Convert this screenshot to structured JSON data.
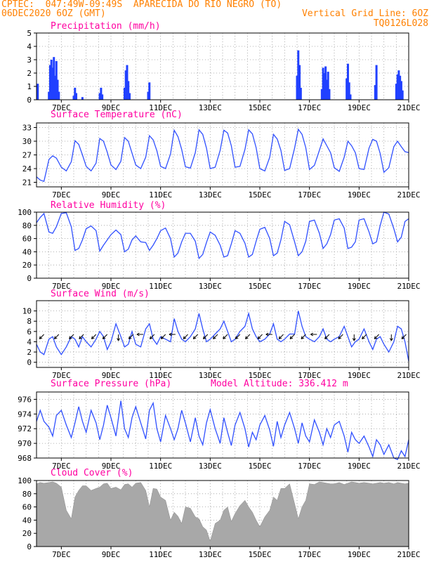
{
  "header": {
    "line1": "CPTEC:  047:49W-09:49S  APARECIDA DO RIO NEGRO (TO)",
    "line2": "06DEC2020 6OZ (GMT)",
    "grid_note": "Vertical Grid Line: 6OZ",
    "code": "TQ0126L028"
  },
  "model_altitude_label": "Model Altitude: 336.412 m",
  "colors": {
    "header": "#ff8000",
    "title": "#ff00a0",
    "line": "#3050ff",
    "bar": "#2040ff",
    "cloud": "#a8a8a8",
    "wind_arrow": "#000000"
  },
  "chart_data": [
    {
      "id": "precip",
      "type": "bar",
      "title": "Precipitation (mm/h)",
      "ylim": [
        0,
        5
      ],
      "yticks": [
        0,
        1,
        2,
        3,
        4,
        5
      ],
      "xlim": [
        6.0,
        21.0
      ],
      "xticks": [
        "7DEC",
        "9DEC",
        "11DEC",
        "13DEC",
        "15DEC",
        "17DEC",
        "19DEC",
        "21DEC"
      ],
      "grid": "dotted",
      "x": [
        6.05,
        6.5,
        6.55,
        6.6,
        6.65,
        6.7,
        6.75,
        6.8,
        6.85,
        6.9,
        7.5,
        7.55,
        7.6,
        7.85,
        8.55,
        8.6,
        8.65,
        9.55,
        9.6,
        9.65,
        9.7,
        9.75,
        10.5,
        10.55,
        16.5,
        16.55,
        16.6,
        16.65,
        17.5,
        17.55,
        17.6,
        17.65,
        17.7,
        17.75,
        17.8,
        18.5,
        18.55,
        18.6,
        18.65,
        19.65,
        19.7,
        20.5,
        20.55,
        20.6,
        20.65,
        20.7,
        20.75
      ],
      "values": [
        1.2,
        0.6,
        2.6,
        3.0,
        2.4,
        3.2,
        1.8,
        2.9,
        1.5,
        0.6,
        0.3,
        0.9,
        0.5,
        0.2,
        0.5,
        0.9,
        0.4,
        0.9,
        2.2,
        2.6,
        1.4,
        0.5,
        0.6,
        1.3,
        1.8,
        3.7,
        2.6,
        0.9,
        0.8,
        2.4,
        2.0,
        2.5,
        1.5,
        2.1,
        0.8,
        1.6,
        2.7,
        1.3,
        0.4,
        1.1,
        2.6,
        1.2,
        1.9,
        2.2,
        1.8,
        1.4,
        0.7
      ]
    },
    {
      "id": "temp",
      "type": "line",
      "title": "Surface Temperature (nC)",
      "ylim": [
        20,
        34
      ],
      "yticks": [
        21,
        24,
        27,
        30,
        33
      ],
      "xlim": [
        6.0,
        21.0
      ],
      "xticks": [
        "7DEC",
        "9DEC",
        "11DEC",
        "13DEC",
        "15DEC",
        "17DEC",
        "19DEC",
        "21DEC"
      ],
      "grid": "dotted",
      "x": [
        6.0,
        6.15,
        6.3,
        6.5,
        6.65,
        6.8,
        7.0,
        7.2,
        7.4,
        7.55,
        7.7,
        7.85,
        8.0,
        8.2,
        8.4,
        8.55,
        8.7,
        8.85,
        9.0,
        9.2,
        9.4,
        9.55,
        9.7,
        9.85,
        10.0,
        10.2,
        10.4,
        10.55,
        10.7,
        10.85,
        11.0,
        11.2,
        11.4,
        11.55,
        11.7,
        11.85,
        12.0,
        12.2,
        12.4,
        12.55,
        12.7,
        12.85,
        13.0,
        13.2,
        13.4,
        13.55,
        13.7,
        13.85,
        14.0,
        14.2,
        14.4,
        14.55,
        14.7,
        14.85,
        15.0,
        15.2,
        15.4,
        15.55,
        15.7,
        15.85,
        16.0,
        16.2,
        16.4,
        16.55,
        16.7,
        16.85,
        17.0,
        17.2,
        17.4,
        17.55,
        17.7,
        17.85,
        18.0,
        18.2,
        18.4,
        18.55,
        18.7,
        18.85,
        19.0,
        19.2,
        19.4,
        19.55,
        19.7,
        19.85,
        20.0,
        20.2,
        20.4,
        20.55,
        20.7,
        20.85,
        21.0
      ],
      "values": [
        22.2,
        21.5,
        21.2,
        26.0,
        26.8,
        26.3,
        24.3,
        23.5,
        25.5,
        30.1,
        29.3,
        27.0,
        24.5,
        23.5,
        25.2,
        30.6,
        30.0,
        27.6,
        24.8,
        23.8,
        25.6,
        30.8,
        30.0,
        27.4,
        24.8,
        24.0,
        26.5,
        31.2,
        30.3,
        27.9,
        24.5,
        24.0,
        27.2,
        32.4,
        31.0,
        28.2,
        24.4,
        24.1,
        27.5,
        32.5,
        31.5,
        28.5,
        24.0,
        24.3,
        28.0,
        32.4,
        31.8,
        29.0,
        24.3,
        24.5,
        28.2,
        32.5,
        31.6,
        28.6,
        24.0,
        23.5,
        26.5,
        31.5,
        30.5,
        28.0,
        23.6,
        24.0,
        28.5,
        32.6,
        31.5,
        28.6,
        23.8,
        24.7,
        28.0,
        30.5,
        29.0,
        27.5,
        24.2,
        23.4,
        26.5,
        30.0,
        29.0,
        27.5,
        24.0,
        23.8,
        28.5,
        30.4,
        30.0,
        27.3,
        23.2,
        24.2,
        28.8,
        30.0,
        28.8,
        27.7,
        27.5
      ]
    },
    {
      "id": "rh",
      "type": "line",
      "title": "Relative Humidity (%)",
      "ylim": [
        0,
        100
      ],
      "yticks": [
        0,
        20,
        40,
        60,
        80,
        100
      ],
      "xlim": [
        6.0,
        21.0
      ],
      "xticks": [
        "7DEC",
        "9DEC",
        "11DEC",
        "13DEC",
        "15DEC",
        "17DEC",
        "19DEC",
        "21DEC"
      ],
      "grid": "dotted",
      "x": [
        6.0,
        6.15,
        6.3,
        6.5,
        6.65,
        6.8,
        7.0,
        7.2,
        7.4,
        7.55,
        7.7,
        7.85,
        8.0,
        8.2,
        8.4,
        8.55,
        8.7,
        8.85,
        9.0,
        9.2,
        9.4,
        9.55,
        9.7,
        9.85,
        10.0,
        10.2,
        10.4,
        10.55,
        10.7,
        10.85,
        11.0,
        11.2,
        11.4,
        11.55,
        11.7,
        11.85,
        12.0,
        12.2,
        12.4,
        12.55,
        12.7,
        12.85,
        13.0,
        13.2,
        13.4,
        13.55,
        13.7,
        13.85,
        14.0,
        14.2,
        14.4,
        14.55,
        14.7,
        14.85,
        15.0,
        15.2,
        15.4,
        15.55,
        15.7,
        15.85,
        16.0,
        16.2,
        16.4,
        16.55,
        16.7,
        16.85,
        17.0,
        17.2,
        17.4,
        17.55,
        17.7,
        17.85,
        18.0,
        18.2,
        18.4,
        18.55,
        18.7,
        18.85,
        19.0,
        19.2,
        19.4,
        19.55,
        19.7,
        19.85,
        20.0,
        20.2,
        20.4,
        20.55,
        20.7,
        20.85,
        21.0
      ],
      "values": [
        84,
        92,
        98,
        70,
        68,
        78,
        98,
        99,
        78,
        42,
        45,
        58,
        75,
        79,
        72,
        41,
        50,
        58,
        66,
        73,
        66,
        40,
        44,
        58,
        64,
        55,
        54,
        42,
        50,
        60,
        72,
        76,
        60,
        32,
        38,
        55,
        68,
        68,
        56,
        30,
        36,
        54,
        70,
        65,
        50,
        32,
        34,
        52,
        72,
        68,
        53,
        32,
        36,
        56,
        74,
        77,
        60,
        34,
        38,
        58,
        86,
        81,
        55,
        34,
        40,
        56,
        86,
        88,
        68,
        45,
        52,
        66,
        88,
        90,
        76,
        45,
        47,
        55,
        88,
        90,
        70,
        52,
        55,
        80,
        100,
        97,
        75,
        55,
        62,
        86,
        90
      ]
    },
    {
      "id": "wind",
      "type": "line",
      "title": "Surface Wind (m/s)",
      "ylim": [
        -1,
        12
      ],
      "yticks": [
        0,
        2,
        4,
        6,
        8,
        10
      ],
      "xlim": [
        6.0,
        21.0
      ],
      "xticks": [
        "7DEC",
        "9DEC",
        "11DEC",
        "13DEC",
        "15DEC",
        "17DEC",
        "19DEC",
        "21DEC"
      ],
      "grid": "dotted",
      "x": [
        6.0,
        6.15,
        6.3,
        6.5,
        6.65,
        6.8,
        7.0,
        7.2,
        7.4,
        7.55,
        7.7,
        7.85,
        8.0,
        8.2,
        8.4,
        8.55,
        8.7,
        8.85,
        9.0,
        9.2,
        9.4,
        9.55,
        9.7,
        9.85,
        10.0,
        10.2,
        10.4,
        10.55,
        10.7,
        10.85,
        11.0,
        11.2,
        11.4,
        11.55,
        11.7,
        11.85,
        12.0,
        12.2,
        12.4,
        12.55,
        12.7,
        12.85,
        13.0,
        13.2,
        13.4,
        13.55,
        13.7,
        13.85,
        14.0,
        14.2,
        14.4,
        14.55,
        14.7,
        14.85,
        15.0,
        15.2,
        15.4,
        15.55,
        15.7,
        15.85,
        16.0,
        16.2,
        16.4,
        16.55,
        16.7,
        16.85,
        17.0,
        17.2,
        17.4,
        17.55,
        17.7,
        17.85,
        18.0,
        18.2,
        18.4,
        18.55,
        18.7,
        18.85,
        19.0,
        19.2,
        19.4,
        19.55,
        19.7,
        19.85,
        20.0,
        20.2,
        20.4,
        20.55,
        20.7,
        20.85,
        21.0
      ],
      "values": [
        3.5,
        2.0,
        1.5,
        4.5,
        5.0,
        3.0,
        1.5,
        3.0,
        5.0,
        4.5,
        3.0,
        5.0,
        4.0,
        3.0,
        4.5,
        6.0,
        5.0,
        2.5,
        4.0,
        7.5,
        5.0,
        3.0,
        3.5,
        6.0,
        3.5,
        3.0,
        6.5,
        7.5,
        4.5,
        3.5,
        5.0,
        4.5,
        4.0,
        8.5,
        6.0,
        4.5,
        4.0,
        5.0,
        6.5,
        9.5,
        6.5,
        4.0,
        4.5,
        5.5,
        6.5,
        8.0,
        6.0,
        4.0,
        4.5,
        6.0,
        7.0,
        9.5,
        6.5,
        5.0,
        4.0,
        4.5,
        5.5,
        7.5,
        4.5,
        4.0,
        4.5,
        5.5,
        5.5,
        10.0,
        7.0,
        5.0,
        4.5,
        4.0,
        5.0,
        6.5,
        4.5,
        4.0,
        4.5,
        5.0,
        7.0,
        5.0,
        3.0,
        4.0,
        4.5,
        6.5,
        4.0,
        2.5,
        4.5,
        5.0,
        3.5,
        2.0,
        4.0,
        7.0,
        6.5,
        4.0,
        0.2
      ],
      "arrows": [
        {
          "x": 6.3,
          "dir": "sw"
        },
        {
          "x": 6.9,
          "dir": "sw"
        },
        {
          "x": 7.5,
          "dir": "sw"
        },
        {
          "x": 7.9,
          "dir": "sw"
        },
        {
          "x": 8.4,
          "dir": "sw"
        },
        {
          "x": 8.85,
          "dir": "sw"
        },
        {
          "x": 9.3,
          "dir": "s"
        },
        {
          "x": 9.9,
          "dir": "sw"
        },
        {
          "x": 10.3,
          "dir": "w"
        },
        {
          "x": 10.75,
          "dir": "sw"
        },
        {
          "x": 11.2,
          "dir": "sw"
        },
        {
          "x": 11.6,
          "dir": "w"
        },
        {
          "x": 12.1,
          "dir": "sw"
        },
        {
          "x": 12.5,
          "dir": "sw"
        },
        {
          "x": 12.9,
          "dir": "sw"
        },
        {
          "x": 13.3,
          "dir": "sw"
        },
        {
          "x": 13.7,
          "dir": "sw"
        },
        {
          "x": 14.2,
          "dir": "sw"
        },
        {
          "x": 14.6,
          "dir": "sw"
        },
        {
          "x": 15.1,
          "dir": "sw"
        },
        {
          "x": 15.5,
          "dir": "w"
        },
        {
          "x": 15.95,
          "dir": "sw"
        },
        {
          "x": 16.4,
          "dir": "sw"
        },
        {
          "x": 16.85,
          "dir": "sw"
        },
        {
          "x": 17.3,
          "dir": "w"
        },
        {
          "x": 17.8,
          "dir": "sw"
        },
        {
          "x": 18.35,
          "dir": "sw"
        },
        {
          "x": 18.8,
          "dir": "s"
        },
        {
          "x": 19.3,
          "dir": "sw"
        },
        {
          "x": 19.8,
          "dir": "sw"
        },
        {
          "x": 20.3,
          "dir": "s"
        },
        {
          "x": 20.9,
          "dir": "sw"
        }
      ]
    },
    {
      "id": "pres",
      "type": "line",
      "title": "Surface Pressure (hPa)",
      "ylim": [
        968,
        977
      ],
      "yticks": [
        968,
        970,
        972,
        974,
        976
      ],
      "xlim": [
        6.0,
        21.0
      ],
      "xticks": [
        "7DEC",
        "9DEC",
        "11DEC",
        "13DEC",
        "15DEC",
        "17DEC",
        "19DEC",
        "21DEC"
      ],
      "grid": "dotted",
      "x": [
        6.0,
        6.15,
        6.3,
        6.5,
        6.65,
        6.8,
        7.0,
        7.2,
        7.4,
        7.55,
        7.7,
        7.85,
        8.0,
        8.2,
        8.4,
        8.55,
        8.7,
        8.85,
        9.0,
        9.2,
        9.4,
        9.55,
        9.7,
        9.85,
        10.0,
        10.2,
        10.4,
        10.55,
        10.7,
        10.85,
        11.0,
        11.2,
        11.4,
        11.55,
        11.7,
        11.85,
        12.0,
        12.2,
        12.4,
        12.55,
        12.7,
        12.85,
        13.0,
        13.2,
        13.4,
        13.55,
        13.7,
        13.85,
        14.0,
        14.2,
        14.4,
        14.55,
        14.7,
        14.85,
        15.0,
        15.2,
        15.4,
        15.55,
        15.7,
        15.85,
        16.0,
        16.2,
        16.4,
        16.55,
        16.7,
        16.85,
        17.0,
        17.2,
        17.4,
        17.55,
        17.7,
        17.85,
        18.0,
        18.2,
        18.4,
        18.55,
        18.7,
        18.85,
        19.0,
        19.2,
        19.4,
        19.55,
        19.7,
        19.85,
        20.0,
        20.2,
        20.4,
        20.55,
        20.7,
        20.85,
        21.0
      ],
      "values": [
        973.0,
        974.5,
        973.0,
        972.2,
        971.0,
        973.8,
        974.5,
        972.5,
        970.8,
        972.8,
        975.0,
        973.0,
        971.5,
        974.5,
        972.8,
        970.5,
        972.5,
        975.2,
        973.5,
        971.0,
        975.8,
        972.0,
        970.8,
        973.5,
        975.0,
        972.8,
        970.6,
        974.5,
        975.5,
        972.0,
        970.2,
        973.8,
        972.0,
        970.5,
        972.0,
        974.5,
        972.8,
        970.2,
        973.5,
        971.0,
        969.8,
        972.8,
        974.6,
        972.0,
        970.0,
        973.5,
        971.5,
        969.7,
        972.5,
        974.2,
        972.0,
        969.5,
        971.5,
        970.5,
        972.5,
        973.8,
        971.8,
        969.6,
        973.0,
        970.8,
        972.5,
        974.2,
        972.0,
        970.0,
        972.8,
        971.0,
        970.2,
        973.2,
        971.5,
        969.8,
        972.0,
        970.8,
        972.5,
        973.0,
        971.0,
        968.8,
        971.5,
        970.5,
        970.0,
        971.0,
        969.5,
        968.2,
        970.5,
        969.8,
        968.5,
        969.8,
        968.0,
        967.8,
        969.0,
        968.2,
        970.5
      ]
    },
    {
      "id": "cloud",
      "type": "area",
      "title": "Cloud Cover (%)",
      "ylim": [
        0,
        100
      ],
      "yticks": [
        0,
        20,
        40,
        60,
        80,
        100
      ],
      "xlim": [
        6.0,
        21.0
      ],
      "xticks": [
        "7DEC",
        "9DEC",
        "11DEC",
        "13DEC",
        "15DEC",
        "17DEC",
        "19DEC",
        "21DEC"
      ],
      "grid": "dotted",
      "x": [
        6.0,
        6.15,
        6.3,
        6.5,
        6.65,
        6.8,
        7.0,
        7.2,
        7.4,
        7.55,
        7.7,
        7.85,
        8.0,
        8.2,
        8.4,
        8.55,
        8.7,
        8.85,
        9.0,
        9.2,
        9.4,
        9.55,
        9.7,
        9.85,
        10.0,
        10.2,
        10.4,
        10.55,
        10.7,
        10.85,
        11.0,
        11.2,
        11.4,
        11.55,
        11.7,
        11.85,
        12.0,
        12.2,
        12.4,
        12.55,
        12.7,
        12.85,
        13.0,
        13.2,
        13.4,
        13.55,
        13.7,
        13.85,
        14.0,
        14.2,
        14.4,
        14.55,
        14.7,
        14.85,
        15.0,
        15.2,
        15.4,
        15.55,
        15.7,
        15.85,
        16.0,
        16.2,
        16.4,
        16.55,
        16.7,
        16.85,
        17.0,
        17.2,
        17.4,
        17.55,
        17.7,
        17.85,
        18.0,
        18.2,
        18.4,
        18.55,
        18.7,
        18.85,
        19.0,
        19.2,
        19.4,
        19.55,
        19.7,
        19.85,
        20.0,
        20.2,
        20.4,
        20.55,
        20.7,
        20.85,
        21.0
      ],
      "values": [
        95,
        97,
        96,
        97,
        98,
        96,
        90,
        55,
        42,
        75,
        85,
        92,
        92,
        85,
        88,
        90,
        95,
        96,
        88,
        90,
        86,
        94,
        95,
        90,
        96,
        97,
        85,
        60,
        88,
        87,
        75,
        70,
        40,
        52,
        46,
        35,
        60,
        58,
        45,
        42,
        30,
        25,
        8,
        35,
        40,
        55,
        60,
        38,
        50,
        62,
        70,
        60,
        52,
        40,
        30,
        45,
        55,
        75,
        70,
        88,
        88,
        95,
        65,
        42,
        60,
        70,
        95,
        94,
        98,
        97,
        96,
        95,
        95,
        97,
        94,
        96,
        98,
        97,
        96,
        97,
        96,
        95,
        96,
        97,
        96,
        97,
        95,
        97,
        96,
        95,
        96
      ]
    }
  ]
}
